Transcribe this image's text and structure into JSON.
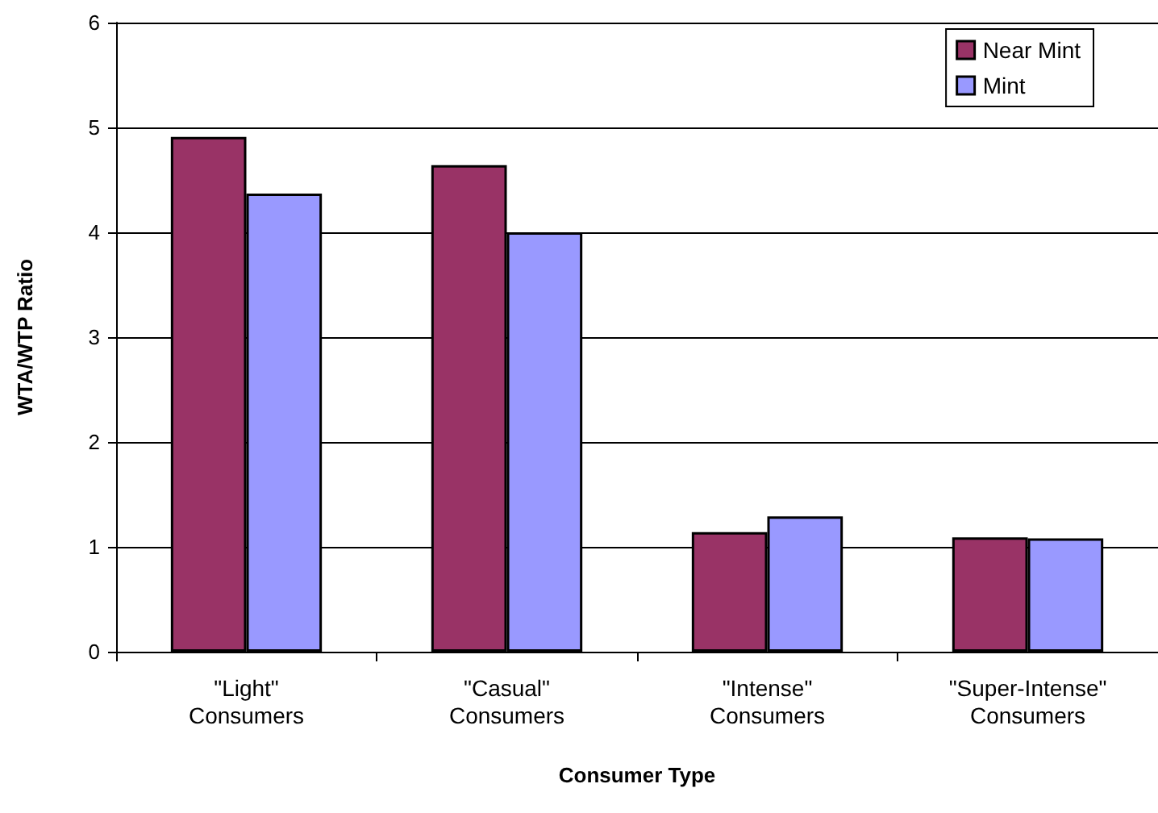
{
  "chart_data": {
    "type": "bar",
    "xlabel": "Consumer Type",
    "ylabel": "WTA/WTP Ratio",
    "categories": [
      "\"Light\"\nConsumers",
      "\"Casual\"\nConsumers",
      "\"Intense\"\nConsumers",
      "\"Super-Intense\"\nConsumers"
    ],
    "series": [
      {
        "name": "Near Mint",
        "color": "#993366",
        "values": [
          4.91,
          4.64,
          1.14,
          1.09
        ]
      },
      {
        "name": "Mint",
        "color": "#9999ff",
        "values": [
          4.37,
          4.0,
          1.29,
          1.08
        ]
      }
    ],
    "ylim": [
      0,
      6
    ],
    "yticks": [
      0,
      1,
      2,
      3,
      4,
      5,
      6
    ],
    "grid": "y",
    "legend": "top right"
  }
}
